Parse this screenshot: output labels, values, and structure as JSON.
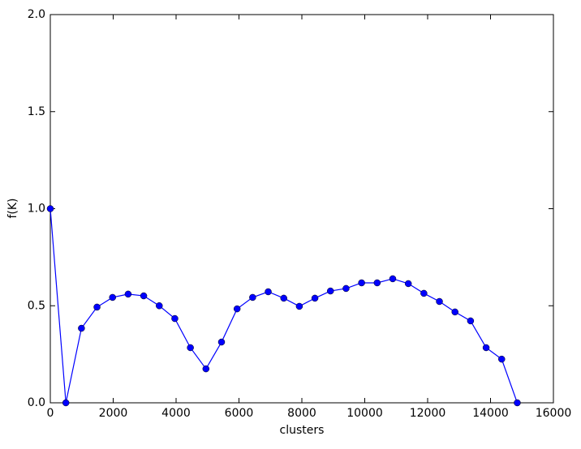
{
  "chart_data": {
    "type": "line",
    "xlabel": "clusters",
    "ylabel": "f(K)",
    "x": [
      0,
      495,
      990,
      1485,
      1980,
      2475,
      2970,
      3465,
      3960,
      4455,
      4950,
      5445,
      5940,
      6435,
      6930,
      7425,
      7920,
      8415,
      8910,
      9405,
      9900,
      10395,
      10890,
      11385,
      11880,
      12375,
      12870,
      13365,
      13860,
      14355,
      14850
    ],
    "series": [
      {
        "color": "#0000ff",
        "values": [
          1.0,
          0.0,
          0.384,
          0.493,
          0.543,
          0.56,
          0.551,
          0.5,
          0.434,
          0.284,
          0.175,
          0.313,
          0.484,
          0.543,
          0.572,
          0.539,
          0.497,
          0.539,
          0.576,
          0.589,
          0.618,
          0.618,
          0.639,
          0.614,
          0.564,
          0.522,
          0.468,
          0.422,
          0.284,
          0.225,
          0.0
        ]
      }
    ],
    "xlim": [
      0,
      16000
    ],
    "xticks": [
      0,
      2000,
      4000,
      6000,
      8000,
      10000,
      12000,
      14000,
      16000
    ],
    "ylim": [
      0.0,
      2.0
    ],
    "yticks": [
      {
        "value": 0,
        "label": "0.0"
      },
      {
        "value": 0.5,
        "label": "0.5"
      },
      {
        "value": 1,
        "label": "1.0"
      },
      {
        "value": 1.5,
        "label": "1.5"
      },
      {
        "value": 2,
        "label": "2.0"
      }
    ]
  }
}
